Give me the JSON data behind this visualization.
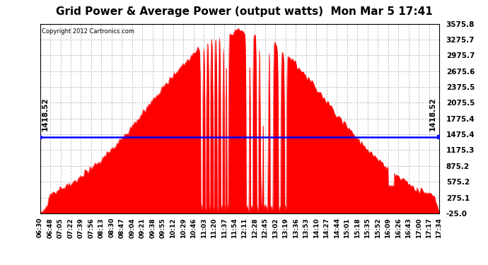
{
  "title": "Grid Power & Average Power (output watts)  Mon Mar 5 17:41",
  "copyright": "Copyright 2012 Cartronics.com",
  "avg_line_value": 1418.52,
  "y_min": -25.0,
  "y_max": 3575.8,
  "y_ticks": [
    3575.8,
    3275.7,
    2975.7,
    2675.6,
    2375.5,
    2075.5,
    1775.4,
    1475.4,
    1175.3,
    875.2,
    575.2,
    275.1,
    -25.0
  ],
  "background_color": "#ffffff",
  "fill_color": "#ff0000",
  "avg_line_color": "#0000ff",
  "grid_color": "#c0c0c0",
  "x_labels": [
    "06:30",
    "06:48",
    "07:05",
    "07:22",
    "07:39",
    "07:56",
    "08:13",
    "08:30",
    "08:47",
    "09:04",
    "09:21",
    "09:38",
    "09:55",
    "10:12",
    "10:29",
    "10:46",
    "11:03",
    "11:20",
    "11:37",
    "11:54",
    "12:11",
    "12:28",
    "12:45",
    "13:02",
    "13:19",
    "13:36",
    "13:53",
    "14:10",
    "14:27",
    "14:44",
    "15:01",
    "15:18",
    "15:35",
    "15:52",
    "16:09",
    "16:26",
    "16:43",
    "17:00",
    "17:17",
    "17:34"
  ]
}
